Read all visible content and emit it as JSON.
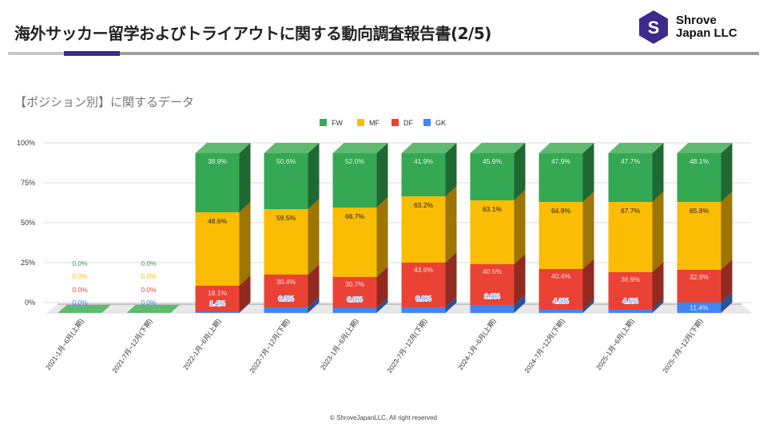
{
  "header": {
    "title": "海外サッカー留学およびトライアウトに関する動向調査報告書(2/5)",
    "logo_letter": "S",
    "company_line1": "Shrove",
    "company_line2": "Japan LLC"
  },
  "section": {
    "subtitle": "【ポジション別】に関するデータ"
  },
  "footer": {
    "copyright": "© ShroveJapanLLC, All right reserved"
  },
  "colors": {
    "FW": "#34a853",
    "MF": "#fbbc04",
    "DF": "#ea4335",
    "GK": "#4285f4",
    "brand": "#3d2a8c"
  },
  "chart_data": {
    "type": "bar",
    "stacked": true,
    "style": "3d-100%-stacked",
    "title": "",
    "legend_position": "top",
    "legend": [
      "FW",
      "MF",
      "DF",
      "GK"
    ],
    "y_ticks": [
      "100%",
      "75%",
      "50%",
      "25%",
      "0%"
    ],
    "ylim": [
      0,
      100
    ],
    "grid": true,
    "categories": [
      "2021-1月~6月(上期)",
      "2021-7月~12月(下期)",
      "2022-1月~6月(上期)",
      "2022-7月~12月(下期)",
      "2023-1月~6月(上期)",
      "2023-7月~12月(下期)",
      "2024-1月~6月(上期)",
      "2024-7月~12月(下期)",
      "2025-1月~6月(上期)",
      "2025-7月~12月(下期)"
    ],
    "series": [
      {
        "name": "FW",
        "share": [
          0,
          0,
          37,
          35,
          34,
          27,
          29.5,
          30.5,
          30.5,
          30.5
        ],
        "labels": [
          "0.0%",
          "0.0%",
          "38.9%",
          "50.6%",
          "52.0%",
          "41.9%",
          "45.9%",
          "47.9%",
          "47.7%",
          "48.1%"
        ]
      },
      {
        "name": "MF",
        "share": [
          0,
          0,
          46,
          41,
          43.5,
          41.5,
          40,
          42,
          44,
          42.5
        ],
        "labels": [
          "0.0%",
          "0.0%",
          "48.6%",
          "59.5%",
          "66.7%",
          "63.2%",
          "63.1%",
          "64.9%",
          "67.7%",
          "65.8%"
        ]
      },
      {
        "name": "DF",
        "share": [
          0,
          0,
          16.5,
          20.5,
          19.5,
          28,
          25.5,
          25.5,
          23.5,
          20.5
        ],
        "labels": [
          "0.0%",
          "0.0%",
          "18.1%",
          "30.4%",
          "30.7%",
          "43.6%",
          "40.5%",
          "40.4%",
          "36.9%",
          "32.9%"
        ]
      },
      {
        "name": "GK",
        "share": [
          0,
          0,
          0.5,
          3.5,
          3,
          3.5,
          5,
          2,
          2,
          6.5
        ],
        "labels": [
          "0.0%",
          "0.0%",
          "1.4%",
          "6.3%",
          "6.0%",
          "6.8%",
          "9.9%",
          "4.3%",
          "4.6%",
          "11.4%"
        ]
      }
    ]
  }
}
